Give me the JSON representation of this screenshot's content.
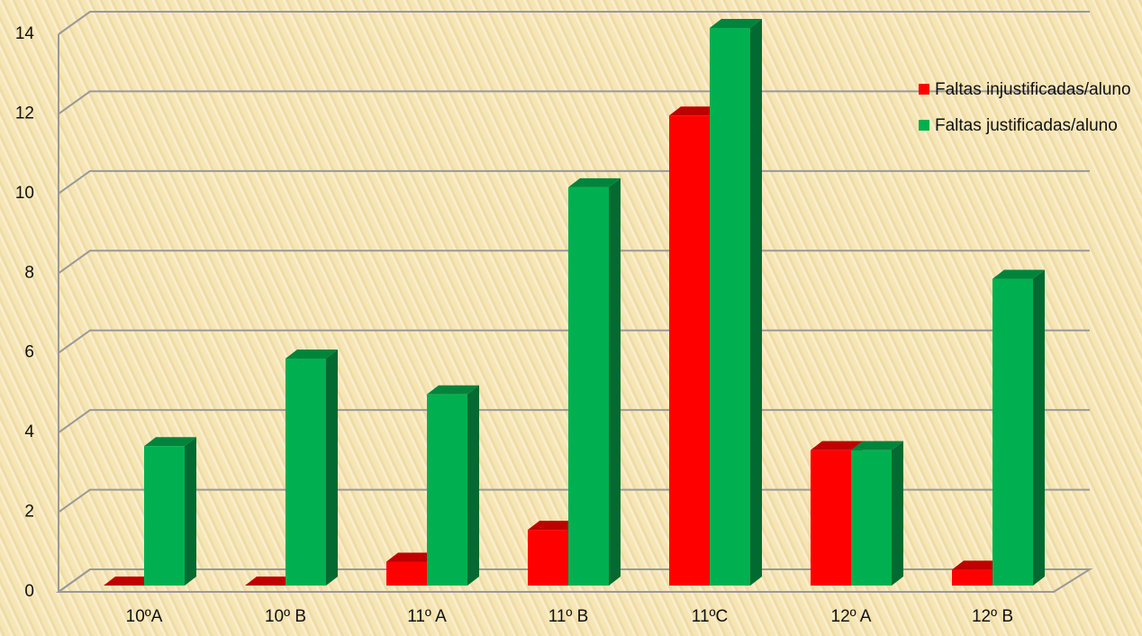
{
  "chart_data": {
    "type": "bar",
    "categories": [
      "10ºA",
      "10º B",
      "11º A",
      "11º B",
      "11ºC",
      "12º A",
      "12º B"
    ],
    "series": [
      {
        "name": "Faltas injustificadas/aluno",
        "color": "#ff0000",
        "values": [
          0,
          0,
          0.6,
          1.4,
          11.8,
          3.4,
          0.4
        ]
      },
      {
        "name": "Faltas justificadas/aluno",
        "color": "#00b050",
        "values": [
          3.5,
          5.7,
          4.8,
          10.0,
          14.0,
          3.4,
          7.7
        ]
      }
    ],
    "ylim": [
      0,
      14
    ],
    "yticks": [
      0,
      2,
      4,
      6,
      8,
      10,
      12,
      14
    ],
    "grid": true,
    "legend": "right"
  }
}
